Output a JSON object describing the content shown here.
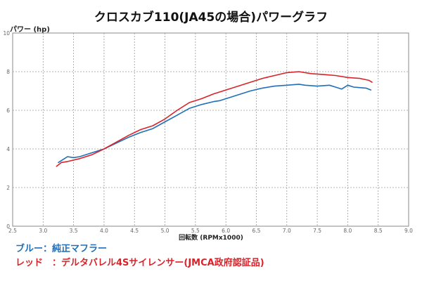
{
  "chart_data": {
    "type": "line",
    "title": "クロスカブ110(JA45の場合)パワーグラフ",
    "ylabel": "パワー (hp)",
    "xlabel": "回転数 (RPMx1000)",
    "xlim": [
      2.5,
      9.0
    ],
    "ylim": [
      0,
      10
    ],
    "x_ticks": [
      "2.5",
      "3.0",
      "3.5",
      "4.0",
      "4.5",
      "5.0",
      "5.5",
      "6.0",
      "6.5",
      "7.0",
      "7.5",
      "8.0",
      "8.5",
      "9.0"
    ],
    "y_ticks": [
      "0",
      "2",
      "4",
      "6",
      "8",
      "10"
    ],
    "grid": true,
    "series": [
      {
        "name": "純正マフラー",
        "color": "#1f6fb8",
        "x": [
          3.25,
          3.35,
          3.4,
          3.5,
          3.6,
          3.8,
          4.0,
          4.2,
          4.4,
          4.6,
          4.8,
          5.0,
          5.2,
          5.4,
          5.6,
          5.8,
          5.9,
          6.0,
          6.2,
          6.4,
          6.6,
          6.8,
          7.0,
          7.2,
          7.3,
          7.5,
          7.7,
          7.8,
          7.9,
          8.0,
          8.1,
          8.3,
          8.38
        ],
        "y": [
          3.3,
          3.5,
          3.6,
          3.55,
          3.6,
          3.8,
          4.0,
          4.3,
          4.6,
          4.85,
          5.05,
          5.4,
          5.75,
          6.1,
          6.3,
          6.45,
          6.5,
          6.6,
          6.8,
          7.0,
          7.15,
          7.25,
          7.3,
          7.35,
          7.3,
          7.25,
          7.3,
          7.2,
          7.1,
          7.3,
          7.2,
          7.15,
          7.05
        ]
      },
      {
        "name": "デルタバレル4Sサイレンサー(JMCA政府認証品)",
        "color": "#d9232a",
        "x": [
          3.22,
          3.3,
          3.4,
          3.6,
          3.8,
          4.0,
          4.2,
          4.4,
          4.6,
          4.8,
          5.0,
          5.2,
          5.4,
          5.6,
          5.8,
          6.0,
          6.2,
          6.4,
          6.6,
          6.8,
          7.0,
          7.2,
          7.4,
          7.6,
          7.8,
          8.0,
          8.2,
          8.35,
          8.4
        ],
        "y": [
          3.1,
          3.3,
          3.35,
          3.5,
          3.7,
          4.0,
          4.35,
          4.7,
          5.0,
          5.2,
          5.55,
          6.0,
          6.4,
          6.6,
          6.85,
          7.05,
          7.25,
          7.45,
          7.65,
          7.8,
          7.95,
          8.0,
          7.9,
          7.85,
          7.8,
          7.7,
          7.65,
          7.55,
          7.45
        ]
      }
    ]
  },
  "legend": {
    "blue": "ブルー：純正マフラー",
    "red": "レッド　：デルタバレル4Sサイレンサー(JMCA政府認証品)"
  }
}
